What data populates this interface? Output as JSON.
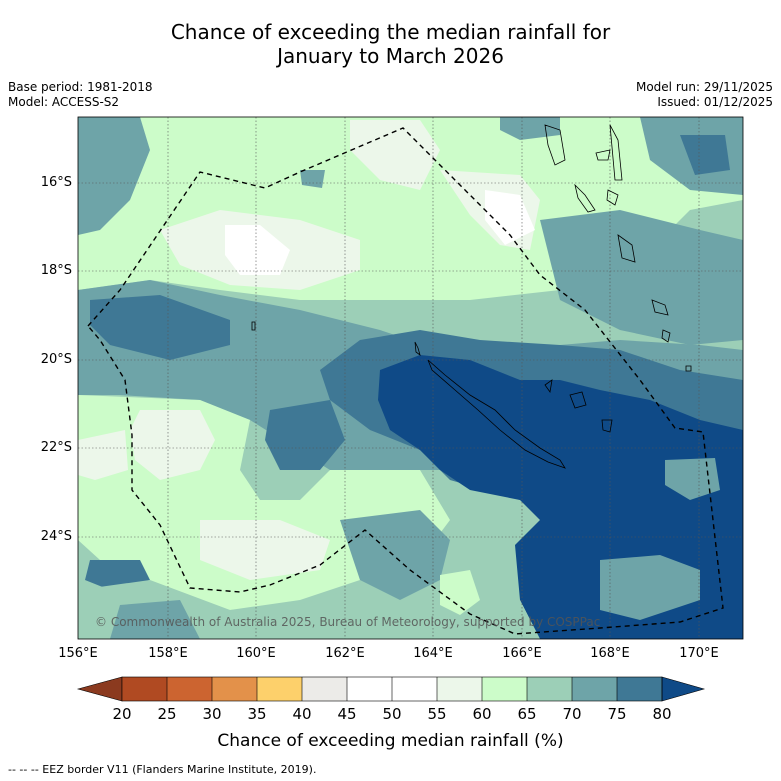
{
  "title_line1": "Chance of exceeding the median rainfall for",
  "title_line2": "January to March 2026",
  "base_period": "Base period: 1981-2018",
  "model": "Model: ACCESS-S2",
  "model_run": "Model run: 29/11/2025",
  "issued": "Issued: 01/12/2025",
  "lat_labels": [
    "16°S",
    "18°S",
    "20°S",
    "22°S",
    "24°S"
  ],
  "lon_labels": [
    "156°E",
    "158°E",
    "160°E",
    "162°E",
    "164°E",
    "166°E",
    "168°E",
    "170°E"
  ],
  "colorbar": {
    "ticks": [
      "20",
      "25",
      "30",
      "35",
      "40",
      "45",
      "50",
      "55",
      "60",
      "65",
      "70",
      "75",
      "80"
    ],
    "colors": [
      "#8b3a1f",
      "#b04a22",
      "#cc6430",
      "#e3914a",
      "#fdd06b",
      "#ecebe8",
      "#ffffff",
      "#ffffff",
      "#ecf7ea",
      "#ccfcc9",
      "#9ccfb7",
      "#6ea4a8",
      "#3f7895",
      "#0f4a87"
    ],
    "title": "Chance of exceeding median rainfall (%)"
  },
  "copyright": "© Commonwealth of Australia 2025, Bureau of Meteorology, supported by COSPPac",
  "footer": "-- -- -- EEZ border V11 (Flanders Marine Institute, 2019)."
}
